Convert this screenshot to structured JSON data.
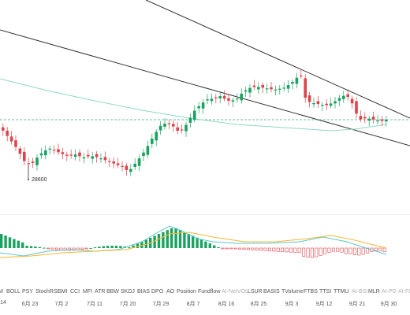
{
  "chart": {
    "low_marker": "28600",
    "up_color": "#1aa260",
    "down_color": "#e0424b",
    "trendline_color": "#333333",
    "ma_color": "#8fd9c3",
    "dashed_line_color": "#3fa77f"
  },
  "indicator": {
    "macd_line_color": "#5cc8c8",
    "signal_line_color": "#f5b731",
    "hist_up_color": "#1aa260",
    "hist_down_color": "#e0424b"
  },
  "tabs": [
    {
      "label": "M",
      "muted": false
    },
    {
      "label": "BOLL",
      "muted": false
    },
    {
      "label": "PSY",
      "muted": false
    },
    {
      "label": "StochRSI",
      "muted": false
    },
    {
      "label": "SMI",
      "muted": false
    },
    {
      "label": "CCI",
      "muted": false
    },
    {
      "label": "MFI",
      "muted": false
    },
    {
      "label": "ATR",
      "muted": false
    },
    {
      "label": "BBW",
      "muted": false
    },
    {
      "label": "SKDJ",
      "muted": false
    },
    {
      "label": "BIAS",
      "muted": false
    },
    {
      "label": "DPO",
      "muted": false
    },
    {
      "label": "AO",
      "muted": false
    },
    {
      "label": "Position",
      "muted": false
    },
    {
      "label": "Fundflow",
      "muted": false
    },
    {
      "label": "AI-NetVOL",
      "muted": true
    },
    {
      "label": "LSUR",
      "muted": false
    },
    {
      "label": "BASIS",
      "muted": false
    },
    {
      "label": "TVolume",
      "muted": false
    },
    {
      "label": "FTBS",
      "muted": false
    },
    {
      "label": "TTSI",
      "muted": false
    },
    {
      "label": "TTMU",
      "muted": false
    },
    {
      "label": "AI-BSI",
      "muted": true
    },
    {
      "label": "MLR",
      "muted": false
    },
    {
      "label": "AI-PD",
      "muted": true
    },
    {
      "label": "AI-FD",
      "muted": true
    }
  ],
  "dates": [
    "14",
    "6月 23",
    "7月 2",
    "7月 11",
    "7月 20",
    "7月 29",
    "8月 7",
    "8月 16",
    "8月 25",
    "9月 3",
    "9月 12",
    "9月 21",
    "9月 30"
  ]
}
